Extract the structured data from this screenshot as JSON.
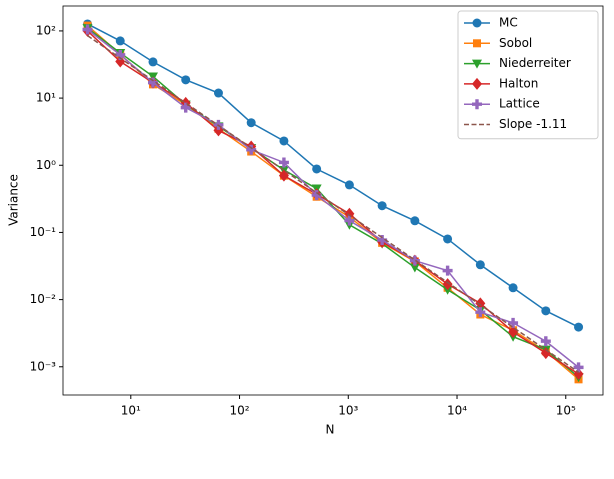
{
  "chart_data": {
    "type": "line",
    "x_label": "N",
    "y_label": "Variance",
    "log_x": true,
    "log_y": true,
    "legend": "upper right",
    "x": [
      4,
      8,
      16,
      32,
      64,
      128,
      256,
      512,
      1024,
      2048,
      4096,
      8192,
      16384,
      32768,
      65536,
      131072
    ],
    "xlim": [
      2.38,
      220000
    ],
    "xticks": [
      {
        "value": 10,
        "label": "10¹"
      },
      {
        "value": 100,
        "label": "10²"
      },
      {
        "value": 1000,
        "label": "10³"
      },
      {
        "value": 10000,
        "label": "10⁴"
      },
      {
        "value": 100000,
        "label": "10⁵"
      }
    ],
    "ylim": [
      0.00038,
      235
    ],
    "yticks": [
      {
        "value": 0.001,
        "label": "10⁻³"
      },
      {
        "value": 0.01,
        "label": "10⁻²"
      },
      {
        "value": 0.1,
        "label": "10⁻¹"
      },
      {
        "value": 1,
        "label": "10⁰"
      },
      {
        "value": 10,
        "label": "10¹"
      },
      {
        "value": 100,
        "label": "10²"
      }
    ],
    "series": [
      {
        "name": "MC",
        "color": "#1f77b4",
        "marker": "circle",
        "values": [
          127,
          71,
          34.6,
          18.7,
          11.9,
          4.3,
          2.3,
          0.88,
          0.51,
          0.25,
          0.149,
          0.08,
          0.033,
          0.015,
          0.0068,
          0.0039
        ]
      },
      {
        "name": "Sobol",
        "color": "#ff7f0e",
        "marker": "square",
        "values": [
          120,
          45,
          16,
          8,
          3.5,
          1.6,
          0.7,
          0.34,
          0.17,
          0.07,
          0.037,
          0.015,
          0.006,
          0.0035,
          0.0017,
          0.00065
        ]
      },
      {
        "name": "Niederreiter",
        "color": "#2ca02c",
        "marker": "triangle-down",
        "values": [
          110,
          47,
          21,
          8,
          3.8,
          1.8,
          0.85,
          0.45,
          0.13,
          0.068,
          0.03,
          0.014,
          0.007,
          0.0028,
          0.0018,
          0.0007
        ]
      },
      {
        "name": "Halton",
        "color": "#d62728",
        "marker": "diamond",
        "values": [
          100,
          35,
          17,
          8.5,
          3.3,
          1.9,
          0.7,
          0.37,
          0.19,
          0.072,
          0.038,
          0.017,
          0.0088,
          0.0033,
          0.0016,
          0.00078
        ]
      },
      {
        "name": "Lattice",
        "color": "#9467bd",
        "marker": "plus",
        "values": [
          105,
          44,
          17,
          7.2,
          4,
          1.7,
          1.1,
          0.36,
          0.15,
          0.077,
          0.038,
          0.027,
          0.0065,
          0.0045,
          0.0024,
          0.00098
        ]
      },
      {
        "name": "Slope -1.11",
        "color": "#8c564b",
        "dashed": true,
        "x": [
          4,
          131072
        ],
        "values": [
          85,
          0.00083
        ]
      }
    ]
  }
}
